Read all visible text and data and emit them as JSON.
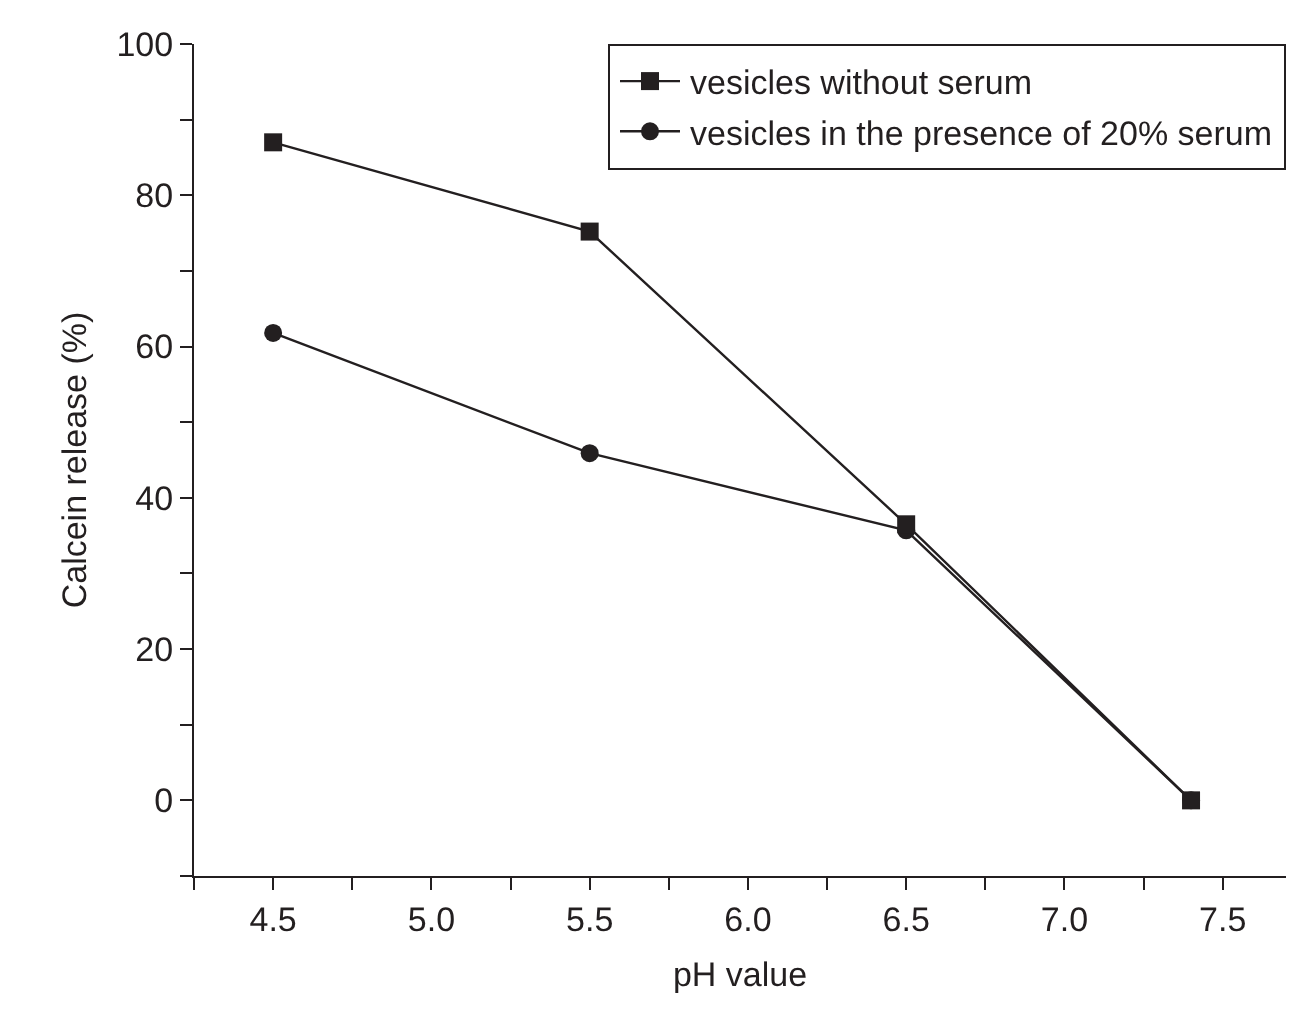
{
  "chart_data": {
    "type": "line",
    "xlabel": "pH value",
    "ylabel": "Calcein release (%)",
    "x": [
      4.5,
      5.5,
      6.5,
      7.4
    ],
    "series": [
      {
        "name": "vesicles without serum",
        "color": "#231f20",
        "marker": "square",
        "values": [
          87.0,
          75.2,
          36.5,
          0
        ]
      },
      {
        "name": "vesicles in the presence of 20% serum",
        "color": "#231f20",
        "marker": "circle",
        "values": [
          61.8,
          45.9,
          35.7,
          0
        ]
      }
    ],
    "xlim": [
      4.25,
      7.7
    ],
    "xticks": [
      {
        "value": 4.25,
        "label": null
      },
      4.5,
      {
        "value": 4.75,
        "label": null
      },
      "5.0",
      {
        "value": 5.25,
        "label": null
      },
      5.5,
      {
        "value": 5.75,
        "label": null
      },
      "6.0",
      {
        "value": 6.25,
        "label": null
      },
      6.5,
      {
        "value": 6.75,
        "label": null
      },
      "7.0",
      {
        "value": 7.25,
        "label": null
      },
      7.5
    ],
    "ylim": [
      -10,
      100
    ],
    "yticks": [
      {
        "value": -10,
        "label": null
      },
      0,
      {
        "value": 10,
        "label": null
      },
      20,
      {
        "value": 30,
        "label": null
      },
      40,
      {
        "value": 50,
        "label": null
      },
      60,
      {
        "value": 70,
        "label": null
      },
      80,
      {
        "value": 90,
        "label": null
      },
      100
    ],
    "grid": false,
    "legend": "top right",
    "line_style": "solid"
  }
}
